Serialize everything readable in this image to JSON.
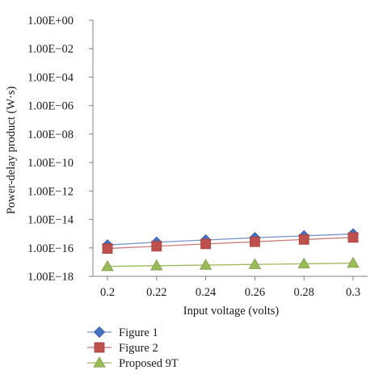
{
  "chart_data": {
    "type": "line",
    "title": "",
    "xlabel": "Input voltage (volts)",
    "ylabel": "Power-delay product (W·s)",
    "x": [
      0.2,
      0.22,
      0.24,
      0.26,
      0.28,
      0.3
    ],
    "x_tick_labels": [
      "0.2",
      "0.22",
      "0.24",
      "0.26",
      "0.28",
      "0.3"
    ],
    "y_scale": "log",
    "ylim": [
      1e-18,
      1
    ],
    "y_ticks": [
      1,
      0.01,
      0.0001,
      1e-06,
      1e-08,
      1e-10,
      1e-12,
      1e-14,
      1e-16,
      1e-18
    ],
    "y_tick_labels": [
      "1.00E+00",
      "1.00E−02",
      "1.00E−04",
      "1.00E−06",
      "1.00E−08",
      "1.00E−10",
      "1.00E−12",
      "1.00E−14",
      "1.00E−16",
      "1.00E−18"
    ],
    "grid": false,
    "legend_position": "bottom-left",
    "series": [
      {
        "name": "Figure 1",
        "marker": "diamond",
        "color": "#4472C4",
        "line_color": "#7b96c8",
        "values": [
          1.6e-16,
          2.5e-16,
          3.6e-16,
          5.2e-16,
          7e-16,
          9.5e-16
        ]
      },
      {
        "name": "Figure 2",
        "marker": "square",
        "color": "#C0504D",
        "line_color": "#c87a78",
        "values": [
          9e-17,
          1.3e-16,
          1.9e-16,
          2.7e-16,
          3.9e-16,
          5.4e-16
        ]
      },
      {
        "name": "Proposed 9T",
        "marker": "triangle",
        "color": "#9BBB59",
        "line_color": "#9BBB59",
        "values": [
          5e-18,
          5.6e-18,
          6.2e-18,
          6.9e-18,
          7.6e-18,
          8.5e-18
        ]
      }
    ]
  }
}
